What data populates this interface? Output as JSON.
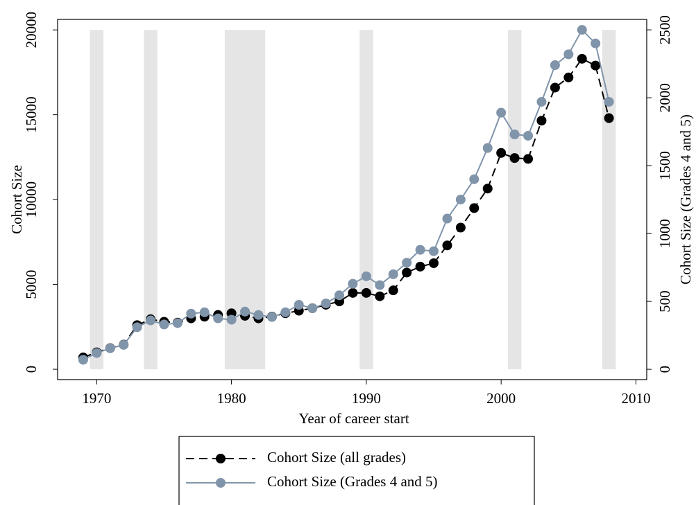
{
  "chart_data": {
    "type": "line",
    "x_label": "Year of career start",
    "y_label": "Cohort Size",
    "y2_label": "Cohort Size (Grades 4 and 5)",
    "x": [
      1969,
      1970,
      1971,
      1972,
      1973,
      1974,
      1975,
      1976,
      1977,
      1978,
      1979,
      1980,
      1981,
      1982,
      1983,
      1984,
      1985,
      1986,
      1987,
      1988,
      1989,
      1990,
      1991,
      1992,
      1993,
      1994,
      1995,
      1996,
      1997,
      1998,
      1999,
      2000,
      2001,
      2002,
      2003,
      2004,
      2005,
      2006,
      2007,
      2008
    ],
    "series": [
      {
        "name": "Cohort Size (all grades)",
        "color": "#000000",
        "line_style": "dashed",
        "values": [
          700,
          1000,
          1250,
          1450,
          2600,
          2950,
          2800,
          2750,
          3000,
          3100,
          3200,
          3300,
          3150,
          3000,
          3100,
          3300,
          3450,
          3600,
          3800,
          4000,
          4500,
          4500,
          4300,
          4650,
          5700,
          6050,
          6250,
          7300,
          8350,
          9500,
          10650,
          12750,
          12450,
          12400,
          14650,
          16600,
          17200,
          18300,
          17900,
          14800
        ]
      },
      {
        "name": "Cohort Size (Grades 4 and 5)",
        "color": "#8094aa",
        "line_style": "solid",
        "axis": "y2",
        "values": [
          70,
          120,
          155,
          180,
          310,
          360,
          330,
          340,
          410,
          420,
          375,
          365,
          425,
          400,
          385,
          420,
          475,
          450,
          485,
          545,
          630,
          685,
          620,
          700,
          785,
          880,
          870,
          1110,
          1250,
          1400,
          1630,
          1890,
          1730,
          1720,
          1970,
          2240,
          2320,
          2500,
          2400,
          1970
        ]
      }
    ],
    "shaded_periods": [
      [
        1969.5,
        1970.5
      ],
      [
        1973.5,
        1974.5
      ],
      [
        1979.5,
        1982.5
      ],
      [
        1989.5,
        1990.5
      ],
      [
        2000.5,
        2001.5
      ],
      [
        2007.5,
        2008.5
      ]
    ],
    "shade_color": "#e5e5e5",
    "xlim": [
      1967.1,
      2010.8
    ],
    "xticks": [
      1970,
      1980,
      1990,
      2000,
      2010
    ],
    "ylim": [
      -610,
      20620
    ],
    "yticks": [
      0,
      5000,
      10000,
      15000,
      20000
    ],
    "y2lim": [
      -76,
      2577
    ],
    "y2ticks": [
      0,
      500,
      1000,
      1500,
      2000,
      2500
    ],
    "legend": "bottom"
  }
}
